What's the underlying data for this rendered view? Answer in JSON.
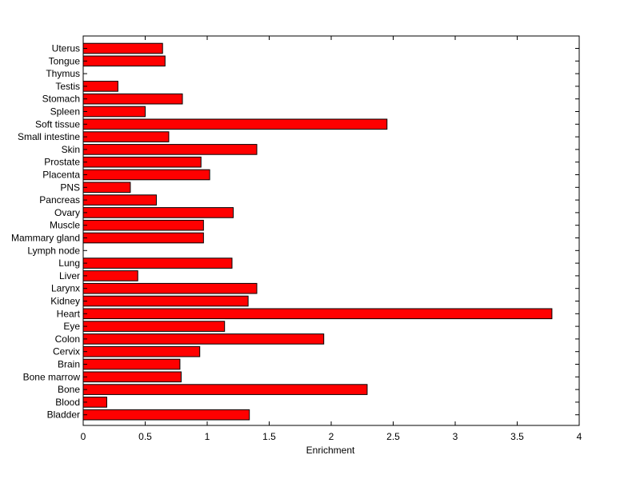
{
  "chart_data": {
    "type": "bar",
    "orientation": "horizontal",
    "title": "",
    "xlabel": "Enrichment",
    "ylabel": "",
    "xlim": [
      0,
      4
    ],
    "xticks": [
      0,
      0.5,
      1,
      1.5,
      2,
      2.5,
      3,
      3.5,
      4
    ],
    "xtick_labels": [
      "0",
      "0.5",
      "1",
      "1.5",
      "2",
      "2.5",
      "3",
      "3.5",
      "4"
    ],
    "grid": false,
    "legend": "none",
    "bar_color": "#ff0000",
    "bar_edge_color": "#000000",
    "categories": [
      "Uterus",
      "Tongue",
      "Thymus",
      "Testis",
      "Stomach",
      "Spleen",
      "Soft tissue",
      "Small intestine",
      "Skin",
      "Prostate",
      "Placenta",
      "PNS",
      "Pancreas",
      "Ovary",
      "Muscle",
      "Mammary gland",
      "Lymph node",
      "Lung",
      "Liver",
      "Larynx",
      "Kidney",
      "Heart",
      "Eye",
      "Colon",
      "Cervix",
      "Brain",
      "Bone marrow",
      "Bone",
      "Blood",
      "Bladder"
    ],
    "values": [
      0.64,
      0.66,
      0,
      0.28,
      0.8,
      0.5,
      2.45,
      0.69,
      1.4,
      0.95,
      1.02,
      0.38,
      0.59,
      1.21,
      0.97,
      0.97,
      0,
      1.2,
      0.44,
      1.4,
      1.33,
      3.78,
      1.14,
      1.94,
      0.94,
      0.78,
      0.79,
      2.29,
      0.19,
      1.34
    ]
  }
}
